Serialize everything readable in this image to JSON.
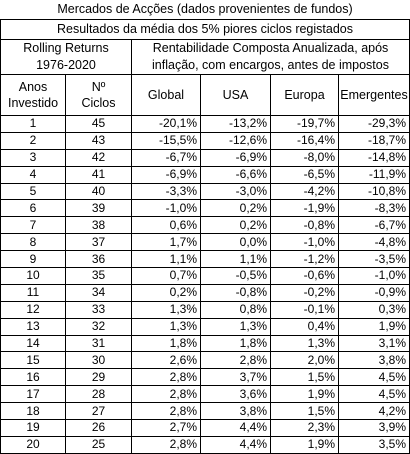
{
  "title": "Mercados de Acções (dados provenientes de fundos)",
  "subtitle": "Resultados da média dos 5% piores ciclos registados",
  "rolling_label": "Rolling Returns",
  "period_label": "1976-2020",
  "rentab_line1": "Rentabilidade Composta Anualizada, após",
  "rentab_line2": "inflação, com encargos, antes de impostos",
  "col_anos_1": "Anos",
  "col_anos_2": "Investido",
  "col_ciclos_1": "Nº",
  "col_ciclos_2": "Ciclos",
  "col_global": "Global",
  "col_usa": "USA",
  "col_europa": "Europa",
  "col_emergentes": "Emergentes",
  "rows": [
    {
      "anos": "1",
      "ciclos": "45",
      "global": "-20,1%",
      "usa": "-13,2%",
      "europa": "-19,7%",
      "emergentes": "-29,3%"
    },
    {
      "anos": "2",
      "ciclos": "43",
      "global": "-15,5%",
      "usa": "-12,6%",
      "europa": "-16,4%",
      "emergentes": "-18,7%"
    },
    {
      "anos": "3",
      "ciclos": "42",
      "global": "-6,7%",
      "usa": "-6,9%",
      "europa": "-8,0%",
      "emergentes": "-14,8%"
    },
    {
      "anos": "4",
      "ciclos": "41",
      "global": "-6,9%",
      "usa": "-6,6%",
      "europa": "-6,5%",
      "emergentes": "-11,9%"
    },
    {
      "anos": "5",
      "ciclos": "40",
      "global": "-3,3%",
      "usa": "-3,0%",
      "europa": "-4,2%",
      "emergentes": "-10,8%"
    },
    {
      "anos": "6",
      "ciclos": "39",
      "global": "-1,0%",
      "usa": "0,2%",
      "europa": "-1,9%",
      "emergentes": "-8,3%"
    },
    {
      "anos": "7",
      "ciclos": "38",
      "global": "0,6%",
      "usa": "0,2%",
      "europa": "-0,8%",
      "emergentes": "-6,7%"
    },
    {
      "anos": "8",
      "ciclos": "37",
      "global": "1,7%",
      "usa": "0,0%",
      "europa": "-1,0%",
      "emergentes": "-4,8%"
    },
    {
      "anos": "9",
      "ciclos": "36",
      "global": "1,1%",
      "usa": "1,1%",
      "europa": "-1,2%",
      "emergentes": "-3,5%"
    },
    {
      "anos": "10",
      "ciclos": "35",
      "global": "0,7%",
      "usa": "-0,5%",
      "europa": "-0,6%",
      "emergentes": "-1,0%"
    },
    {
      "anos": "11",
      "ciclos": "34",
      "global": "0,2%",
      "usa": "-0,8%",
      "europa": "-0,2%",
      "emergentes": "-0,9%"
    },
    {
      "anos": "12",
      "ciclos": "33",
      "global": "1,3%",
      "usa": "0,8%",
      "europa": "-0,1%",
      "emergentes": "0,3%"
    },
    {
      "anos": "13",
      "ciclos": "32",
      "global": "1,3%",
      "usa": "1,3%",
      "europa": "0,4%",
      "emergentes": "1,9%"
    },
    {
      "anos": "14",
      "ciclos": "31",
      "global": "1,8%",
      "usa": "1,8%",
      "europa": "1,3%",
      "emergentes": "3,1%"
    },
    {
      "anos": "15",
      "ciclos": "30",
      "global": "2,6%",
      "usa": "2,8%",
      "europa": "2,0%",
      "emergentes": "3,8%"
    },
    {
      "anos": "16",
      "ciclos": "29",
      "global": "2,8%",
      "usa": "3,7%",
      "europa": "1,5%",
      "emergentes": "4,5%"
    },
    {
      "anos": "17",
      "ciclos": "28",
      "global": "2,8%",
      "usa": "3,6%",
      "europa": "1,9%",
      "emergentes": "4,5%"
    },
    {
      "anos": "18",
      "ciclos": "27",
      "global": "2,8%",
      "usa": "3,8%",
      "europa": "1,5%",
      "emergentes": "4,2%"
    },
    {
      "anos": "19",
      "ciclos": "26",
      "global": "2,7%",
      "usa": "4,4%",
      "europa": "2,3%",
      "emergentes": "3,9%"
    },
    {
      "anos": "20",
      "ciclos": "25",
      "global": "2,8%",
      "usa": "4,4%",
      "europa": "1,9%",
      "emergentes": "3,5%"
    }
  ]
}
